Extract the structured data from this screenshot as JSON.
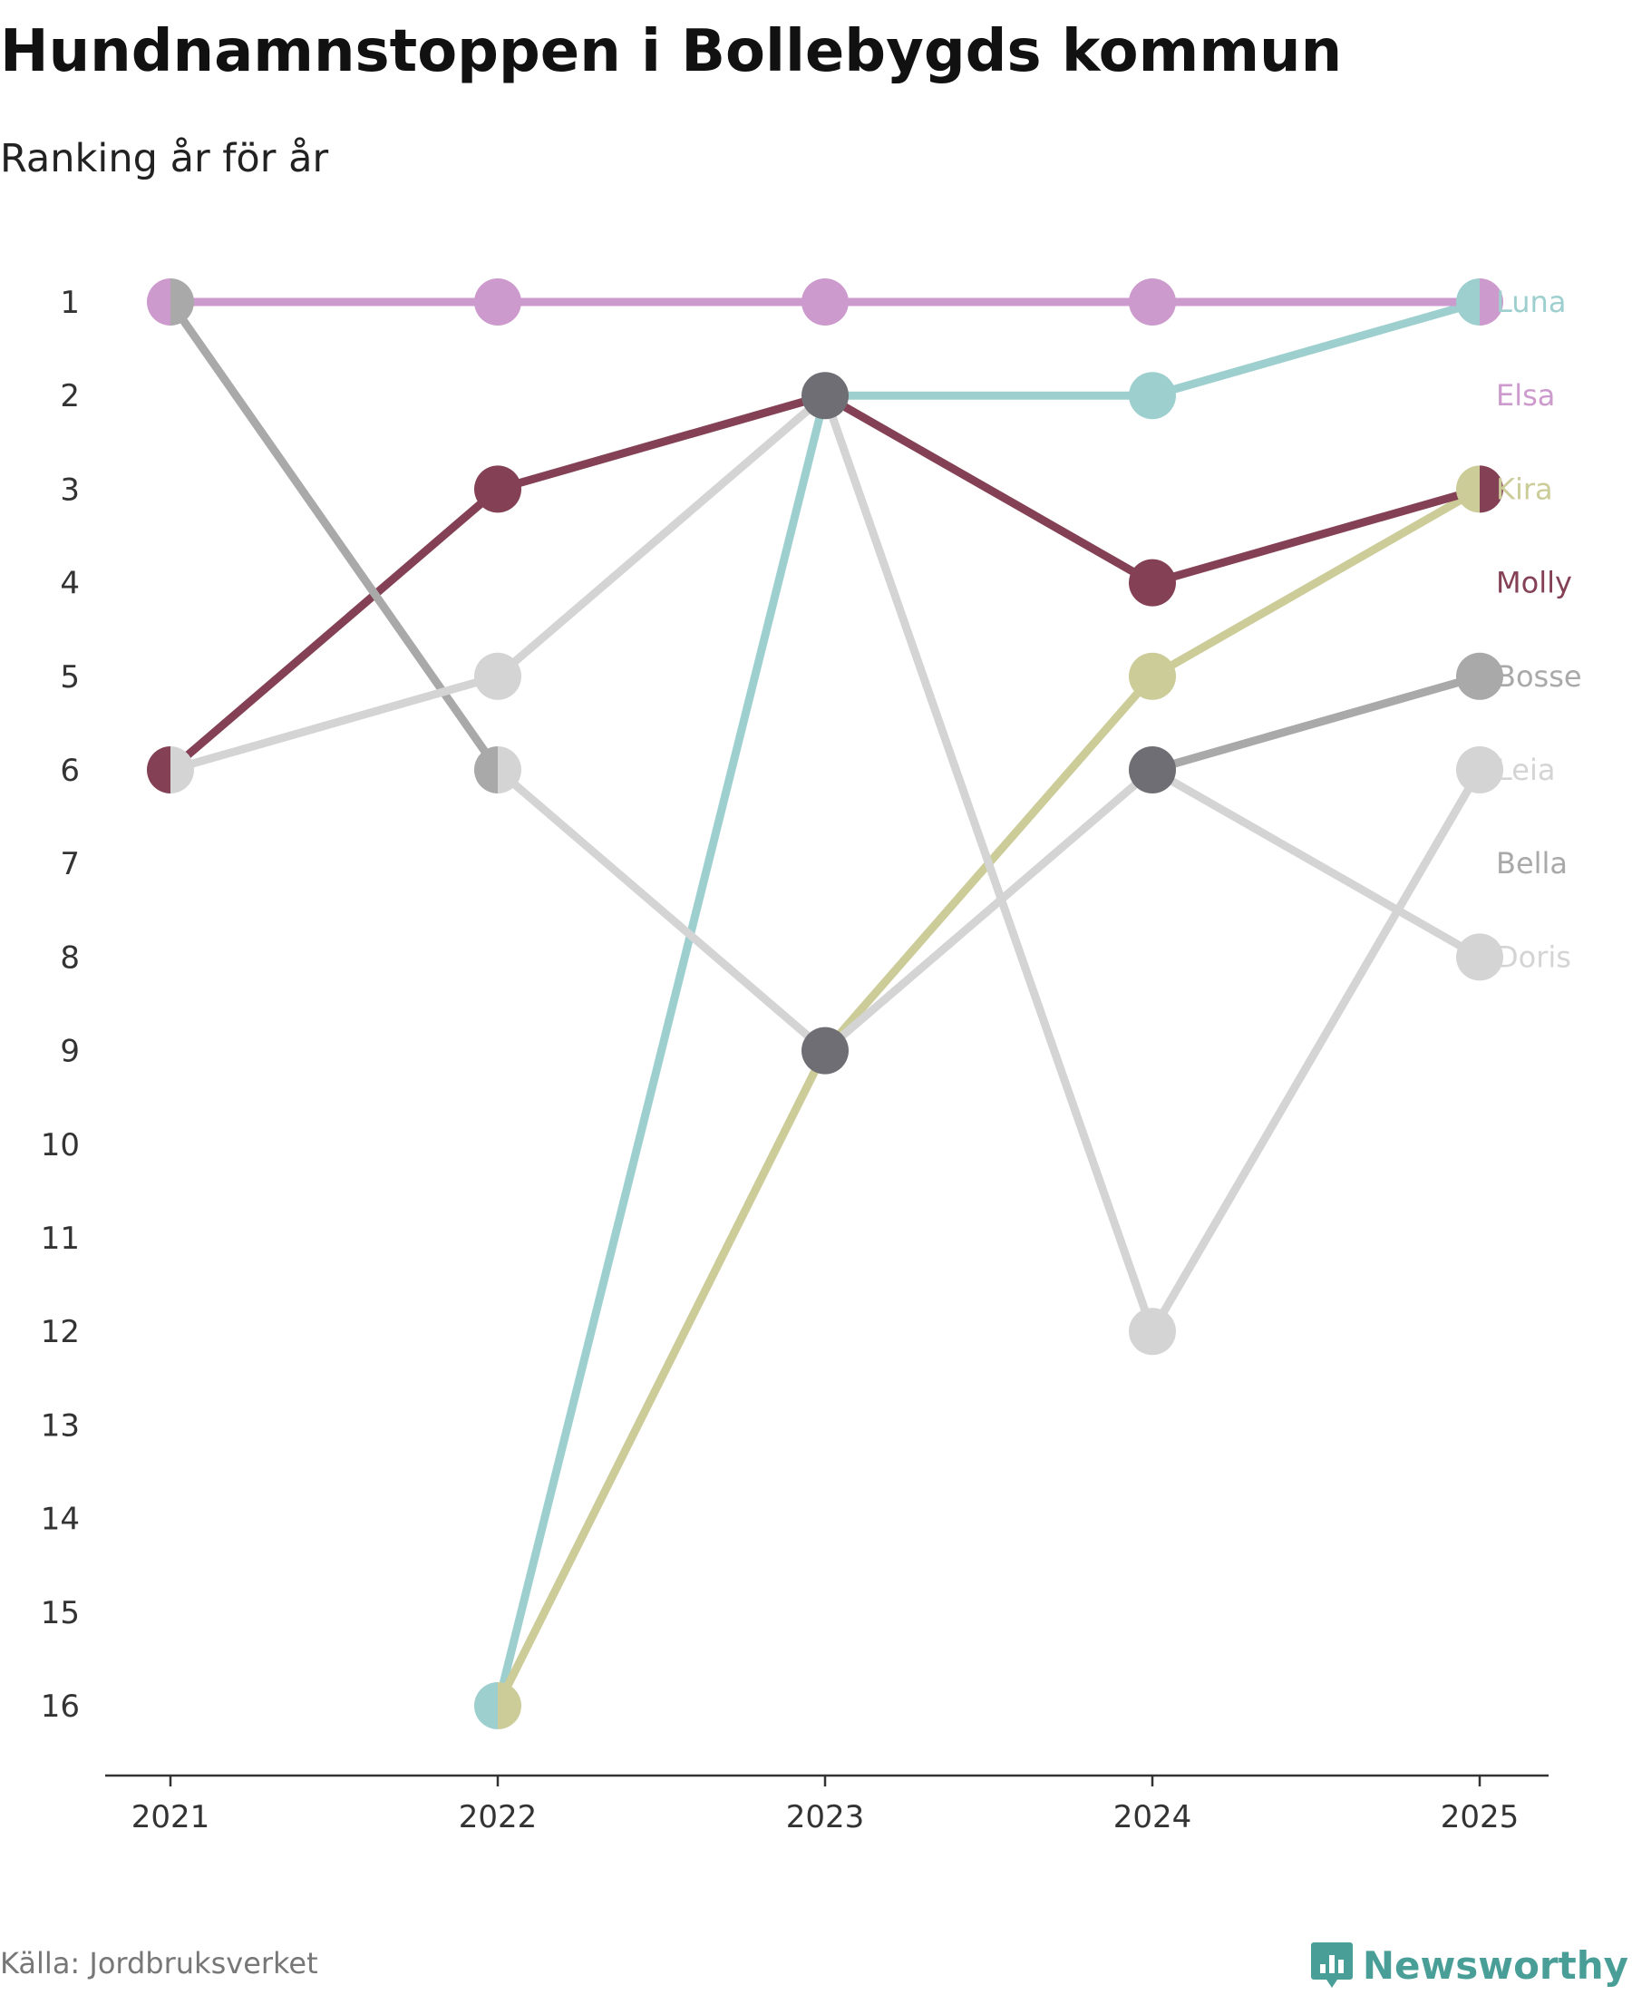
{
  "title": "Hundnamnstoppen i Bollebygds kommun",
  "subtitle": "Ranking år för år",
  "source": "Källa: Jordbruksverket",
  "brand": "Newsworthy",
  "chart_data": {
    "type": "line",
    "subtype": "bump",
    "x": [
      "2021",
      "2022",
      "2023",
      "2024",
      "2025"
    ],
    "y_ticks": [
      "1",
      "2",
      "3",
      "4",
      "5",
      "6",
      "7",
      "8",
      "9",
      "10",
      "11",
      "12",
      "13",
      "14",
      "15",
      "16"
    ],
    "ylim": [
      1,
      16
    ],
    "y_reversed": true,
    "series": [
      {
        "name": "Luna",
        "color": "#9ecfcf",
        "values": [
          null,
          16,
          2,
          2,
          1
        ]
      },
      {
        "name": "Elsa",
        "color": "#cc9acc",
        "values": [
          1,
          1,
          1,
          1,
          1
        ]
      },
      {
        "name": "Kira",
        "color": "#cccc99",
        "values": [
          null,
          16,
          9,
          5,
          3
        ]
      },
      {
        "name": "Molly",
        "color": "#844055",
        "values": [
          6,
          3,
          2,
          4,
          3
        ]
      },
      {
        "name": "Bosse",
        "color": "#a9a9a9",
        "values": [
          1,
          6,
          null,
          6,
          5
        ]
      },
      {
        "name": "Leia",
        "color": "#d4d4d4",
        "values": [
          6,
          5,
          2,
          12,
          6
        ]
      },
      {
        "name": "Bella",
        "color": "#a9a9a9",
        "values": [
          null,
          null,
          null,
          null,
          null
        ]
      },
      {
        "name": "Doris",
        "color": "#d4d4d4",
        "values": [
          null,
          6,
          9,
          6,
          8
        ]
      }
    ],
    "shared_point_color": "#6e6e74",
    "label_color_dark": "#844055"
  }
}
